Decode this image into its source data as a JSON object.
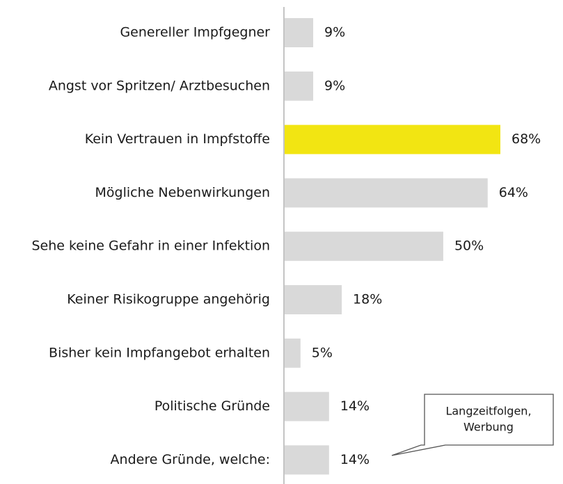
{
  "chart_data": {
    "type": "barh",
    "categories": [
      "Genereller Impfgegner",
      "Angst vor Spritzen/ Arztbesuchen",
      "Kein Vertrauen in Impfstoffe",
      "Mögliche Nebenwirkungen",
      "Sehe keine Gefahr in einer Infektion",
      "Keiner Risikogruppe angehörig",
      "Bisher kein Impfangebot erhalten",
      "Politische Gründe",
      "Andere Gründe, welche:"
    ],
    "values": [
      9,
      9,
      68,
      64,
      50,
      18,
      5,
      14,
      14
    ],
    "value_labels": [
      "9%",
      "9%",
      "68%",
      "64%",
      "50%",
      "18%",
      "5%",
      "14%",
      "14%"
    ],
    "colors": [
      "#d9d9d9",
      "#d9d9d9",
      "#f2e512",
      "#d9d9d9",
      "#d9d9d9",
      "#d9d9d9",
      "#d9d9d9",
      "#d9d9d9",
      "#d9d9d9"
    ],
    "annotation": [
      "Langzeitfolgen,",
      "Werbung"
    ]
  }
}
